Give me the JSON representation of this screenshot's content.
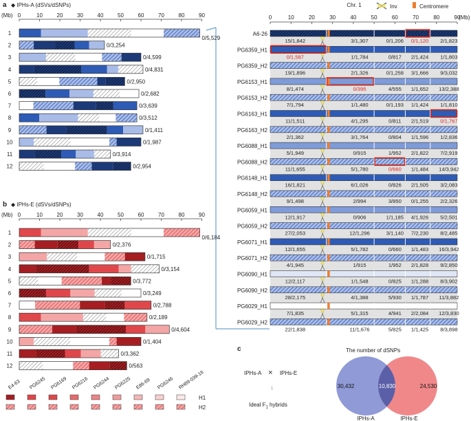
{
  "panels": {
    "a": {
      "label": "a",
      "title": "IPHs-A (dSVs/dSNPs)"
    },
    "b": {
      "label": "b",
      "title": "IPHs-E (dSVs/dSNPs)"
    },
    "c": {
      "label": "c"
    }
  },
  "axis": {
    "unit": "(Mb)",
    "ticks": [
      "0",
      "10",
      "20",
      "30",
      "40",
      "50",
      "60",
      "70",
      "80",
      "90"
    ]
  },
  "chrA": {
    "chromosomes": [
      {
        "num": "1",
        "label": "0/5,529",
        "length": 89
      },
      {
        "num": "2",
        "label": "0/3,254",
        "length": 42
      },
      {
        "num": "3",
        "label": "0/4,599",
        "length": 60
      },
      {
        "num": "4",
        "label": "0/4,831",
        "length": 61
      },
      {
        "num": "5",
        "label": "0/2,950",
        "length": 52
      },
      {
        "num": "6",
        "label": "0/2,682",
        "length": 59
      },
      {
        "num": "7",
        "label": "0/3,639",
        "length": 58
      },
      {
        "num": "8",
        "label": "0/3,512",
        "length": 58
      },
      {
        "num": "9",
        "label": "0/1,411",
        "length": 61
      },
      {
        "num": "10",
        "label": "0/1,987",
        "length": 60
      },
      {
        "num": "11",
        "label": "0/3,914",
        "length": 45
      },
      {
        "num": "12",
        "label": "0/2,954",
        "length": 55
      }
    ]
  },
  "chrE": {
    "chromosomes": [
      {
        "num": "1",
        "label": "0/6,184",
        "length": 89
      },
      {
        "num": "2",
        "label": "0/2,376",
        "length": 45
      },
      {
        "num": "3",
        "label": "0/1,715",
        "length": 62
      },
      {
        "num": "4",
        "label": "0/3,154",
        "length": 69
      },
      {
        "num": "5",
        "label": "0/3,772",
        "length": 55
      },
      {
        "num": "6",
        "label": "0/3,249",
        "length": 60
      },
      {
        "num": "7",
        "label": "0/2,788",
        "length": 65
      },
      {
        "num": "8",
        "label": "0/2,189",
        "length": 63
      },
      {
        "num": "9",
        "label": "0/4,604",
        "length": 74
      },
      {
        "num": "10",
        "label": "0/1,404",
        "length": 60
      },
      {
        "num": "11",
        "label": "0/3,362",
        "length": 49
      },
      {
        "num": "12",
        "label": "0/563",
        "length": 53
      }
    ]
  },
  "legendB": {
    "names": [
      "E4-63",
      "PG6245",
      "PG6169",
      "PG6216",
      "PG6244",
      "PG6225",
      "E86-69",
      "PG6246",
      "RH89-039-16"
    ],
    "h1": "H1",
    "h2": "H2"
  },
  "chr1Panel": {
    "title": "Chr. 1",
    "inv_label": "Inv",
    "centromere_label": "Centromere",
    "ticks": [
      "0",
      "10",
      "20",
      "30",
      "40",
      "50",
      "60",
      "70",
      "80",
      "90"
    ],
    "unit": "(Mb)",
    "rows": [
      {
        "name": "A6-26",
        "segs": [
          {
            "t": "15/1,842",
            "red": false
          },
          {
            "t": "3/1,307",
            "red": false
          },
          {
            "t": "0/1,206",
            "red": false
          },
          {
            "t": "0/1,120",
            "red": true
          },
          {
            "t": "2/1,823",
            "red": false
          }
        ]
      },
      {
        "name": "PG6359_H1",
        "segs": [
          {
            "t": "0/1,587",
            "red": true
          },
          {
            "t": "1/1,784",
            "red": false
          },
          {
            "t": "0/817",
            "red": false
          },
          {
            "t": "2/1,424",
            "red": false
          },
          {
            "t": "1/1,803",
            "red": false
          }
        ]
      },
      {
        "name": "PG6359_H2",
        "segs": [
          {
            "t": "19/1,896",
            "red": false
          },
          {
            "t": "2/1,326",
            "red": false
          },
          {
            "t": "0/1,258",
            "red": false
          },
          {
            "t": "3/1,666",
            "red": false
          },
          {
            "t": "9/3,032",
            "red": false
          }
        ]
      },
      {
        "name": "PG6153_H1",
        "segs": [
          {
            "t": "8/1,474",
            "red": false
          },
          {
            "t": "0/395",
            "red": true
          },
          {
            "t": "4/555",
            "red": false
          },
          {
            "t": "1/1,652",
            "red": false
          },
          {
            "t": "13/2,388",
            "red": false
          }
        ]
      },
      {
        "name": "PG6153_H2",
        "segs": [
          {
            "t": "7/1,794",
            "red": false
          },
          {
            "t": "1/1,480",
            "red": false
          },
          {
            "t": "0/1,193",
            "red": false
          },
          {
            "t": "1/1,424",
            "red": false
          },
          {
            "t": "1/1,810",
            "red": false
          }
        ]
      },
      {
        "name": "PG6163_H1",
        "segs": [
          {
            "t": "11/1,511",
            "red": false
          },
          {
            "t": "4/1,295",
            "red": false
          },
          {
            "t": "0/811",
            "red": false
          },
          {
            "t": "2/1,519",
            "red": false
          },
          {
            "t": "0/1,767",
            "red": true
          }
        ]
      },
      {
        "name": "PG6163_H2",
        "segs": [
          {
            "t": "2/1,362",
            "red": false
          },
          {
            "t": "3/1,764",
            "red": false
          },
          {
            "t": "0/804",
            "red": false
          },
          {
            "t": "1/1,596",
            "red": false
          },
          {
            "t": "1/2,836",
            "red": false
          }
        ]
      },
      {
        "name": "PG6088_H1",
        "segs": [
          {
            "t": "5/1,949",
            "red": false
          },
          {
            "t": "0/915",
            "red": false
          },
          {
            "t": "1/952",
            "red": false
          },
          {
            "t": "2/1,822",
            "red": false
          },
          {
            "t": "7/2,919",
            "red": false
          }
        ]
      },
      {
        "name": "PG6088_H2",
        "segs": [
          {
            "t": "11/1,655",
            "red": false
          },
          {
            "t": "5/1,780",
            "red": false
          },
          {
            "t": "0/660",
            "red": true
          },
          {
            "t": "1/1,484",
            "red": false
          },
          {
            "t": "14/3,942",
            "red": false
          }
        ]
      },
      {
        "name": "PG6148_H1",
        "segs": [
          {
            "t": "16/1,821",
            "red": false
          },
          {
            "t": "6/1,026",
            "red": false
          },
          {
            "t": "0/826",
            "red": false
          },
          {
            "t": "2/1,505",
            "red": false
          },
          {
            "t": "3/2,083",
            "red": false
          }
        ]
      },
      {
        "name": "PG6148_H2",
        "segs": [
          {
            "t": "9/1,498",
            "red": false
          },
          {
            "t": "2/994",
            "red": false
          },
          {
            "t": "3/850",
            "red": false
          },
          {
            "t": "0/1,255",
            "red": false
          },
          {
            "t": "2/2,326",
            "red": false
          }
        ]
      },
      {
        "name": "PG6059_H1",
        "segs": [
          {
            "t": "12/1,917",
            "red": false
          },
          {
            "t": "0/906",
            "red": false
          },
          {
            "t": "1/1,185",
            "red": false
          },
          {
            "t": "4/1,926",
            "red": false
          },
          {
            "t": "5/2,501",
            "red": false
          }
        ]
      },
      {
        "name": "PG6059_H2",
        "segs": [
          {
            "t": "27/2,053",
            "red": false
          },
          {
            "t": "12/1,296",
            "red": false
          },
          {
            "t": "3/1,140",
            "red": false
          },
          {
            "t": "7/2,230",
            "red": false
          },
          {
            "t": "8/2,485",
            "red": false
          }
        ]
      },
      {
        "name": "PG6071_H1",
        "segs": [
          {
            "t": "12/1,655",
            "red": false
          },
          {
            "t": "5/1,782",
            "red": false
          },
          {
            "t": "0/660",
            "red": false
          },
          {
            "t": "1/1,483",
            "red": false
          },
          {
            "t": "16/3,942",
            "red": false
          }
        ]
      },
      {
        "name": "PG6071_H2",
        "segs": [
          {
            "t": "4/1,945",
            "red": false
          },
          {
            "t": "1/915",
            "red": false
          },
          {
            "t": "1/952",
            "red": false
          },
          {
            "t": "2/1,828",
            "red": false
          },
          {
            "t": "9/2,850",
            "red": false
          }
        ]
      },
      {
        "name": "PG6090_H1",
        "segs": [
          {
            "t": "12/2,117",
            "red": false
          },
          {
            "t": "1/1,548",
            "red": false
          },
          {
            "t": "0/825",
            "red": false
          },
          {
            "t": "1/1,288",
            "red": false
          },
          {
            "t": "8/3,902",
            "red": false
          }
        ]
      },
      {
        "name": "PG6090_H2",
        "segs": [
          {
            "t": "28/2,175",
            "red": false
          },
          {
            "t": "4/1,388",
            "red": false
          },
          {
            "t": "5/930",
            "red": false
          },
          {
            "t": "1/1,787",
            "red": false
          },
          {
            "t": "11/3,882",
            "red": false
          }
        ]
      },
      {
        "name": "PG6029_H1",
        "segs": [
          {
            "t": "7/1,835",
            "red": false
          },
          {
            "t": "5/1,315",
            "red": false
          },
          {
            "t": "4/941",
            "red": false
          },
          {
            "t": "2/2,084",
            "red": false
          },
          {
            "t": "12/3,830",
            "red": false
          }
        ]
      },
      {
        "name": "PG6029_H2",
        "segs": [
          {
            "t": "22/1,838",
            "red": false
          },
          {
            "t": "11/1,676",
            "red": false
          },
          {
            "t": "5/825",
            "red": false
          },
          {
            "t": "1/1,425",
            "red": false
          },
          {
            "t": "8/3,898",
            "red": false
          }
        ]
      }
    ]
  },
  "panelC": {
    "parent_a": "IPHs-A",
    "cross": "×",
    "parent_e": "IPHs-E",
    "arrow": "↓",
    "hybrid_prefix": "Ideal F",
    "hybrid_sub": "1",
    "hybrid_suffix": " hybrids",
    "venn_title": "The number of dSNPs",
    "venn_left_value": "30,432",
    "venn_overlap_value": "10,830",
    "venn_right_value": "24,530",
    "venn_left_label": "IPHs-A",
    "venn_right_label": "IPHs-E",
    "colors": {
      "left": "#8f9ad6",
      "right": "#f0888a",
      "overlap": "#5b5fa8"
    }
  },
  "colors": {
    "blue_dark": "#1c3a78",
    "blue_mid": "#2e5bb5",
    "blue_light": "#a9bce8",
    "red_dark": "#a51e22",
    "red_mid": "#e0474b",
    "red_light": "#f4a6a6",
    "highlight_red": "#e2231a",
    "centromere": "#ee7d30",
    "inv_yellow": "#efe36a",
    "link_line": "#4a8cc9"
  }
}
